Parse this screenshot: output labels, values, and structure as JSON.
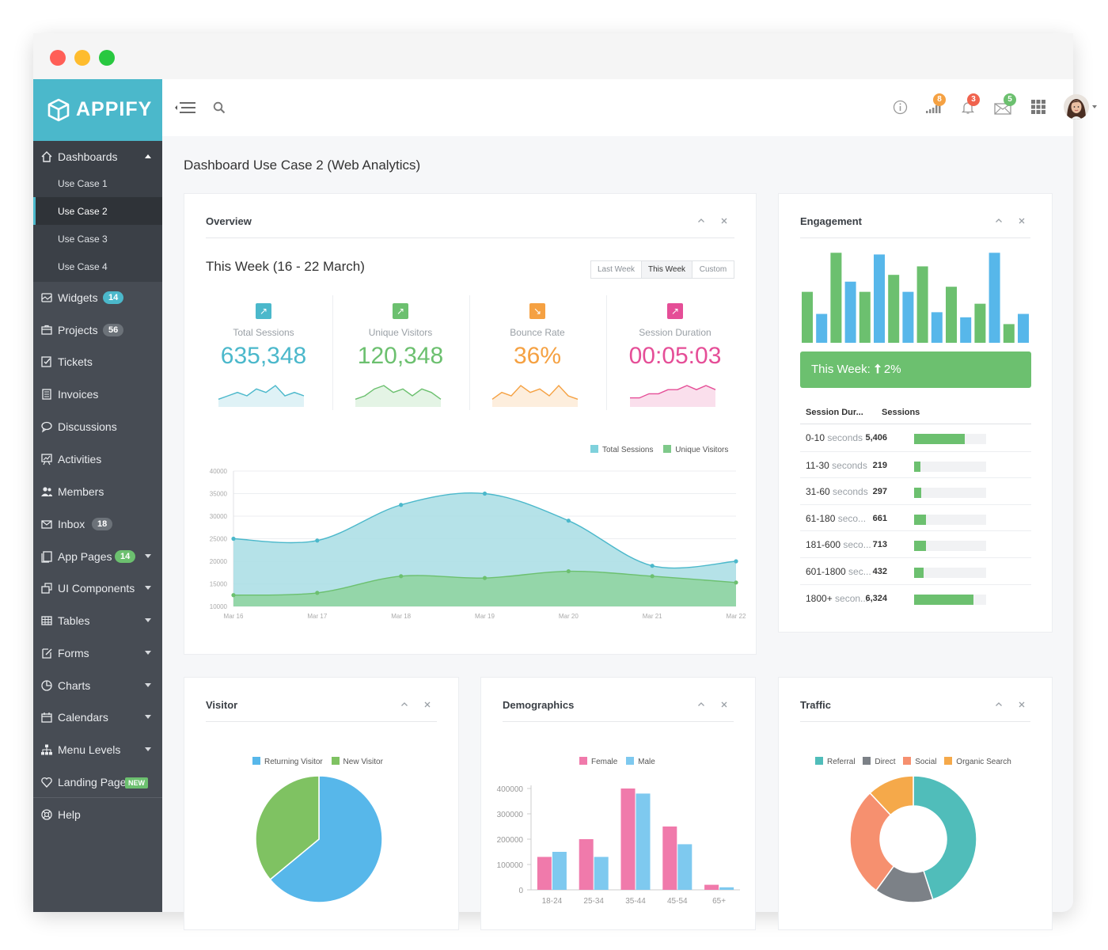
{
  "app": {
    "name": "APPIFY"
  },
  "sidebar": {
    "items": [
      {
        "label": "Dashboards",
        "icon": "home-icon",
        "open": true
      },
      {
        "label": "Widgets",
        "icon": "widgets-icon",
        "badge": "14",
        "badge_color": "#4bb8cb"
      },
      {
        "label": "Projects",
        "icon": "projects-icon",
        "badge": "56",
        "badge_color": "#6c7279"
      },
      {
        "label": "Tickets",
        "icon": "tickets-icon"
      },
      {
        "label": "Invoices",
        "icon": "invoices-icon"
      },
      {
        "label": "Discussions",
        "icon": "discussions-icon"
      },
      {
        "label": "Activities",
        "icon": "activities-icon"
      },
      {
        "label": "Members",
        "icon": "members-icon"
      },
      {
        "label": "Inbox",
        "icon": "inbox-icon",
        "badge": "18",
        "badge_color": "#6c7279"
      },
      {
        "label": "App Pages",
        "icon": "app-pages-icon",
        "badge": "14",
        "badge_color": "#6cc06f"
      },
      {
        "label": "UI Components",
        "icon": "ui-components-icon"
      },
      {
        "label": "Tables",
        "icon": "tables-icon"
      },
      {
        "label": "Forms",
        "icon": "forms-icon"
      },
      {
        "label": "Charts",
        "icon": "charts-icon"
      },
      {
        "label": "Calendars",
        "icon": "calendars-icon"
      },
      {
        "label": "Menu Levels",
        "icon": "menu-levels-icon"
      },
      {
        "label": "Landing Page",
        "icon": "heart-icon",
        "badge": "NEW",
        "badge_color": "#6cc06f"
      },
      {
        "label": "Help",
        "icon": "help-icon"
      }
    ],
    "submenu": [
      {
        "label": "Use Case 1"
      },
      {
        "label": "Use Case 2",
        "active": true
      },
      {
        "label": "Use Case 3"
      },
      {
        "label": "Use Case 4"
      }
    ]
  },
  "topbar": {
    "badges": {
      "signal": "8",
      "bell": "3",
      "mail": "5"
    },
    "badge_colors": {
      "signal": "#f5a142",
      "bell": "#f0634e",
      "mail": "#6cc06f"
    }
  },
  "page": {
    "title": "Dashboard Use Case 2 (Web Analytics)"
  },
  "overview": {
    "title": "Overview",
    "week_title": "This Week (16 - 22 March)",
    "range_buttons": [
      "Last Week",
      "This Week",
      "Custom"
    ],
    "selected_range": "This Week",
    "kpis": [
      {
        "label": "Total Sessions",
        "value": "635,348",
        "color": "#4bb8cb",
        "arrow": "↗",
        "spark": [
          2,
          3,
          4,
          3,
          5,
          4,
          6,
          3,
          4,
          3
        ]
      },
      {
        "label": "Unique Visitors",
        "value": "120,348",
        "color": "#6cc06f",
        "arrow": "↗",
        "spark": [
          2,
          3,
          5,
          6,
          4,
          5,
          3,
          5,
          4,
          2
        ]
      },
      {
        "label": "Bounce Rate",
        "value": "36%",
        "color": "#f5a142",
        "arrow": "↘",
        "spark": [
          2,
          4,
          3,
          6,
          4,
          5,
          3,
          6,
          3,
          2
        ]
      },
      {
        "label": "Session Duration",
        "value": "00:05:03",
        "color": "#e54e97",
        "arrow": "↗",
        "spark": [
          2,
          2,
          3,
          3,
          4,
          4,
          5,
          4,
          5,
          4
        ]
      }
    ],
    "legend": [
      "Total Sessions",
      "Unique Visitors"
    ]
  },
  "engagement": {
    "title": "Engagement",
    "banner_prefix": "This Week: ",
    "banner_value": "2%",
    "headers": [
      "Session Dur...",
      "Sessions"
    ],
    "rows": [
      {
        "label": "0-10",
        "unit": " seconds",
        "value": "5,406",
        "pct": 0.7
      },
      {
        "label": "11-30",
        "unit": " seconds",
        "value": "219",
        "pct": 0.08
      },
      {
        "label": "31-60",
        "unit": " seconds",
        "value": "297",
        "pct": 0.1
      },
      {
        "label": "61-180",
        "unit": " seco...",
        "value": "661",
        "pct": 0.16
      },
      {
        "label": "181-600",
        "unit": " seco...",
        "value": "713",
        "pct": 0.17
      },
      {
        "label": "601-1800",
        "unit": " sec...",
        "value": "432",
        "pct": 0.13
      },
      {
        "label": "1800+",
        "unit": " secon...",
        "value": "6,324",
        "pct": 0.82
      }
    ]
  },
  "visitor": {
    "title": "Visitor"
  },
  "demographics": {
    "title": "Demographics"
  },
  "traffic": {
    "title": "Traffic"
  },
  "chart_data": [
    {
      "type": "area",
      "x": [
        "Mar 16",
        "Mar 17",
        "Mar 18",
        "Mar 19",
        "Mar 20",
        "Mar 21",
        "Mar 22"
      ],
      "series": [
        {
          "name": "Total Sessions",
          "values": [
            25000,
            24600,
            32500,
            35000,
            29000,
            19000,
            20000
          ],
          "color": "#4bb8cb"
        },
        {
          "name": "Unique Visitors",
          "values": [
            12500,
            13000,
            16700,
            16300,
            17800,
            16700,
            15300
          ],
          "color": "#6cc06f"
        }
      ],
      "y_ticks": [
        "40000",
        "35000",
        "30000",
        "25000",
        "20000",
        "15000",
        "10000"
      ],
      "ylim": [
        10000,
        40000
      ],
      "grid": true,
      "legend": "top-right"
    },
    {
      "type": "bar",
      "values": [
        30,
        17,
        53,
        36,
        30,
        52,
        40,
        30,
        45,
        18,
        33,
        15,
        23,
        53,
        11,
        17
      ],
      "colors": [
        "#6cc06f",
        "#57b7ea"
      ],
      "ylim": [
        0,
        55
      ]
    },
    {
      "type": "pie",
      "categories": [
        "Returning Visitor",
        "New Visitor"
      ],
      "values": [
        64,
        36
      ],
      "colors": [
        "#57b7ea",
        "#7fc262"
      ],
      "legend": "top"
    },
    {
      "type": "bar",
      "categories": [
        "18-24",
        "25-34",
        "35-44",
        "45-54",
        "65+"
      ],
      "series": [
        {
          "name": "Female",
          "values": [
            130000,
            200000,
            400000,
            250000,
            20000
          ],
          "color": "#f07aab"
        },
        {
          "name": "Male",
          "values": [
            150000,
            130000,
            380000,
            180000,
            10000
          ],
          "color": "#7ec9ef"
        }
      ],
      "y_ticks": [
        "400000",
        "300000",
        "200000",
        "100000",
        "0"
      ],
      "ylim": [
        0,
        400000
      ],
      "legend": "top"
    },
    {
      "type": "pie",
      "categories": [
        "Referral",
        "Direct",
        "Social",
        "Organic Search"
      ],
      "values": [
        45,
        15,
        28,
        12
      ],
      "colors": [
        "#50bdba",
        "#7c8187",
        "#f6906f",
        "#f5a94a"
      ],
      "legend": "top"
    }
  ]
}
